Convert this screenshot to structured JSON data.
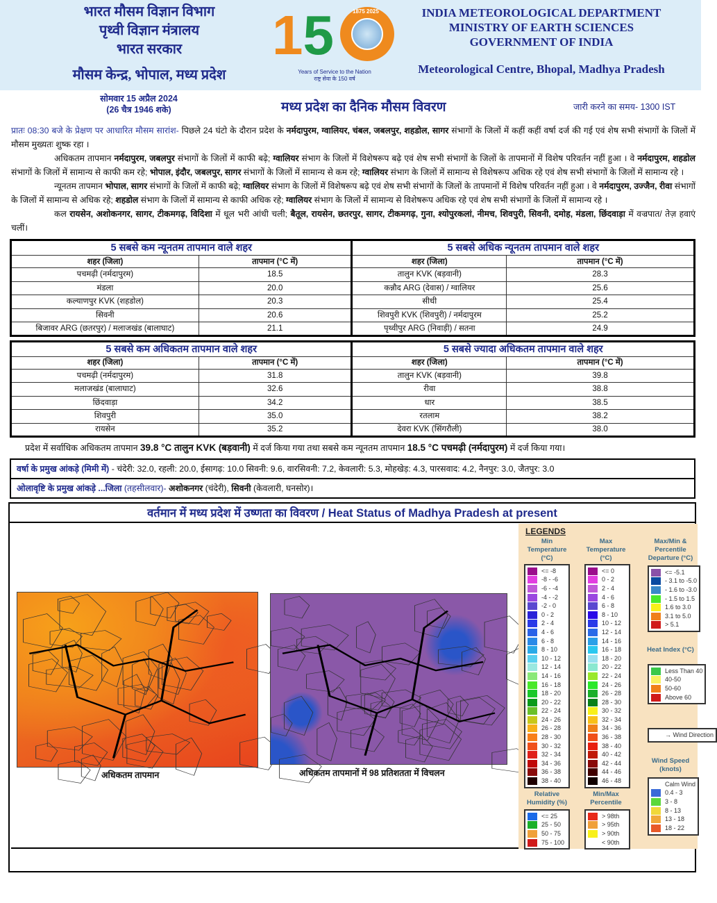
{
  "header": {
    "hindi_lines": [
      "भारत मौसम विज्ञान विभाग",
      "पृथ्वी विज्ञान मंत्रालय",
      "भारत सरकार"
    ],
    "hindi_centre": "मौसम केन्द्र, भोपाल, मध्य प्रदेश",
    "english_lines": [
      "INDIA METEOROLOGICAL DEPARTMENT",
      "MINISTRY OF EARTH SCIENCES",
      "GOVERNMENT OF INDIA"
    ],
    "english_centre": "Meteorological Centre, Bhopal, Madhya Pradesh",
    "logo": {
      "number": "150",
      "years": "1875 2025",
      "tagline": "Years of Service to the Nation",
      "tagline_hindi": "राष्ट्र सेवा के 150 वर्ष"
    }
  },
  "date": {
    "line1": "सोमवार 15 अप्रैल 2024",
    "line2": "(26 चैत्र 1946 शके)"
  },
  "title": "मध्य प्रदेश का दैनिक मौसम विवरण",
  "issue_time": "जारी करने का समय- 1300 IST",
  "paragraphs": [
    [
      {
        "t": "प्रातः 08:30 बजे के प्रेक्षण पर आधारित मौसम सारांश-",
        "lbl": true
      },
      {
        "t": " पिछले 24 घंटो के दौरान प्रदेश के "
      },
      {
        "t": "नर्मदापुरम, ग्वालियर, चंबल, जबलपुर, शहडोल, सागर",
        "b": true
      },
      {
        "t": " संभागों के जिलों में कहीं कहीं वर्षा दर्ज की गई एवं शेष सभी संभागों के जिलों में मौसम मुख्यतः शुष्क रहा ।"
      }
    ],
    [
      {
        "t": "अधिकतम तापमान "
      },
      {
        "t": "नर्मदापुरम, जबलपुर",
        "b": true
      },
      {
        "t": " संभागों के जिलों में काफी बढ़े; "
      },
      {
        "t": "ग्वालियर",
        "b": true
      },
      {
        "t": " संभाग के जिलों में विशेषरूप बढ़े एवं शेष सभी संभागों के जिलों के तापमानों में विशेष परिवर्तन नहीं हुआ । वे "
      },
      {
        "t": "नर्मदापुरम, शहडोल",
        "b": true
      },
      {
        "t": " संभागों के जिलों में सामान्य से काफी कम रहे; "
      },
      {
        "t": "भोपाल, इंदौर, जबलपुर, सागर",
        "b": true
      },
      {
        "t": " संभागों के जिलों में सामान्य से कम रहे; "
      },
      {
        "t": "ग्वालियर",
        "b": true
      },
      {
        "t": " संभाग के जिलों में सामान्य से विशेषरूप अधिक रहे एवं शेष सभी संभागों के जिलों में सामान्य रहे ।"
      }
    ],
    [
      {
        "t": "न्यूनतम तापमान "
      },
      {
        "t": "भोपाल, सागर",
        "b": true
      },
      {
        "t": " संभागों के जिलों में काफी बढ़े; "
      },
      {
        "t": "ग्वालियर",
        "b": true
      },
      {
        "t": " संभाग के जिलों में विशेषरूप बढ़े एवं शेष सभी संभागों के जिलों के तापमानों में विशेष परिवर्तन नहीं हुआ । वे "
      },
      {
        "t": "नर्मदापुरम, उज्जैन, रीवा",
        "b": true
      },
      {
        "t": " संभागों के जिलों में सामान्य से अधिक रहे; "
      },
      {
        "t": "शहडोल",
        "b": true
      },
      {
        "t": " संभाग के जिलों में सामान्य से काफी अधिक रहे; "
      },
      {
        "t": "ग्वालियर",
        "b": true
      },
      {
        "t": " संभाग के जिलों में सामान्य से विशेषरूप अधिक रहे एवं शेष सभी संभागों के जिलों में सामान्य रहे ।"
      }
    ],
    [
      {
        "t": "कल "
      },
      {
        "t": "रायसेन, अशोकनगर,",
        "b": true
      },
      {
        "t": " सागर, टीकमगढ़, विदिशा",
        "b": true
      },
      {
        "t": " में धूल भरी आंधी चली; "
      },
      {
        "t": "बैतूल, रायसेन, छतरपुर, सागर, टीकमगढ़, गुना, श्योपुरकलां, नीमच, शिवपुरी, सिवनी, दमोह, मंडला, छिंदवाड़ा",
        "b": true
      },
      {
        "t": " में वज्रपात/ तेज़ हवाएं चलीं।"
      }
    ]
  ],
  "tables": [
    {
      "left": {
        "title": "5 सबसे कम न्यूनतम तापमान वाले शहर",
        "headers": [
          "शहर (जिला)",
          "तापमान (°C में)"
        ],
        "rows": [
          [
            "पचमढ़ी (नर्मदापुरम)",
            "18.5"
          ],
          [
            "मंडला",
            "20.0"
          ],
          [
            "कल्याणपुर KVK (शहडोल)",
            "20.3"
          ],
          [
            "सिवनी",
            "20.6"
          ],
          [
            "बिजावर ARG (छतरपुर) / मलाजखंड (बालाघाट)",
            "21.1"
          ]
        ]
      },
      "right": {
        "title": "5 सबसे अधिक न्यूनतम तापमान वाले शहर",
        "headers": [
          "शहर (जिला)",
          "तापमान (°C में)"
        ],
        "rows": [
          [
            "तालुन KVK (बड़वानी)",
            "28.3"
          ],
          [
            "कन्नौद ARG (देवास) / ग्वालियर",
            "25.6"
          ],
          [
            "सीधी",
            "25.4"
          ],
          [
            "शिवपुरी KVK (शिवपुरी) / नर्मदापुरम",
            "25.2"
          ],
          [
            "पृथ्वीपुर ARG (निवाड़ी) / सतना",
            "24.9"
          ]
        ]
      }
    },
    {
      "left": {
        "title": "5 सबसे कम अधिकतम तापमान वाले शहर",
        "headers": [
          "शहर (जिला)",
          "तापमान (°C में)"
        ],
        "rows": [
          [
            "पचमढ़ी (नर्मदापुरम)",
            "31.8"
          ],
          [
            "मलाजखंड (बालाघाट)",
            "32.6"
          ],
          [
            "छिंदवाड़ा",
            "34.2"
          ],
          [
            "शिवपुरी",
            "35.0"
          ],
          [
            "रायसेन",
            "35.2"
          ]
        ]
      },
      "right": {
        "title": "5 सबसे ज्यादा अधिकतम तापमान वाले शहर",
        "headers": [
          "शहर (जिला)",
          "तापमान (°C में)"
        ],
        "rows": [
          [
            "तालुन KVK (बड़वानी)",
            "39.8"
          ],
          [
            "रीवा",
            "38.8"
          ],
          [
            "धार",
            "38.5"
          ],
          [
            "रतलाम",
            "38.2"
          ],
          [
            "देवरा KVK (सिंगरौली)",
            "38.0"
          ]
        ]
      }
    }
  ],
  "summary": {
    "pre": "प्रदेश में सर्वाधिक अधिकतम तापमान ",
    "max": "39.8 °C तालुन KVK (बड़वानी)",
    "mid": " में दर्ज किया गया तथा सबसे कम न्यूनतम तापमान ",
    "min": "18.5 °C पचमढ़ी (नर्मदापुरम)",
    "post": " में दर्ज किया गया।"
  },
  "rainfall": {
    "label": "वर्षा के प्रमुख आंकड़े (मिमी में)",
    "text": " - चंदेरी: 32.0, रहली: 20.0, ईसागढ़: 10.0 सिवनी: 9.6, वारसिवनी: 7.2, केवलारी: 5.3, मोहखेड़: 4.3, पारसवाद: 4.2, नैनपुर: 3.0, जैतपुर: 3.0"
  },
  "hail": {
    "label": "ओलावृष्टि के प्रमुख आंकड़े ...जिला",
    "sub": " (तहसीलवार)- ",
    "d1": "अशोकनगर",
    "t1": " (चंदेरी), ",
    "d2": "सिवनी",
    "t2": " (केवलारी, घनसोर)।"
  },
  "heat": {
    "title": "वर्तमान में मध्य प्रदेश में उष्णता का विवरण / Heat Status of Madhya Pradesh at present",
    "map1_caption": "अधिकतम तापमान",
    "map2_caption": "अधिकतम तापमानों में 98 प्रतिशतता में विचलन",
    "legend": {
      "heading": "LEGENDS",
      "groups": [
        {
          "title": "Min Temperature (°C)",
          "items": [
            [
              "<= -8",
              "#9b0d8c"
            ],
            [
              "-8 - -6",
              "#e23fe0"
            ],
            [
              "-6 - -4",
              "#c05ad8"
            ],
            [
              "-4 - -2",
              "#9a48e0"
            ],
            [
              "-2 - 0",
              "#5a48d0"
            ],
            [
              "0 - 2",
              "#2a22d8"
            ],
            [
              "2 - 4",
              "#2a3ae8"
            ],
            [
              "4 - 6",
              "#2a62e8"
            ],
            [
              "6 - 8",
              "#2a8ae8"
            ],
            [
              "8 - 10",
              "#2aaae8"
            ],
            [
              "10 - 12",
              "#5ad0f0"
            ],
            [
              "12 - 14",
              "#9ae8e0"
            ],
            [
              "14 - 16",
              "#8ae878"
            ],
            [
              "16 - 18",
              "#4ae82a"
            ],
            [
              "18 - 20",
              "#1ac82a"
            ],
            [
              "20 - 22",
              "#0a9a1a"
            ],
            [
              "22 - 24",
              "#6ac02a"
            ],
            [
              "24 - 26",
              "#c8c81a"
            ],
            [
              "26 - 28",
              "#f8b01a"
            ],
            [
              "28 - 30",
              "#f8801a"
            ],
            [
              "30 - 32",
              "#f0501a"
            ],
            [
              "32 - 34",
              "#e0201a"
            ],
            [
              "34 - 36",
              "#c00a0a"
            ],
            [
              "36 - 38",
              "#8a0a0a"
            ],
            [
              "38 - 40",
              "#200000"
            ]
          ]
        },
        {
          "title": "Max Temperature (°C)",
          "items": [
            [
              "<= 0",
              "#9b0d8c"
            ],
            [
              "0 - 2",
              "#e23fe0"
            ],
            [
              "2 - 4",
              "#c05ad8"
            ],
            [
              "4 - 6",
              "#9a48e0"
            ],
            [
              "6 - 8",
              "#5a48d0"
            ],
            [
              "8 - 10",
              "#2a0ae8"
            ],
            [
              "10 - 12",
              "#2a3ae8"
            ],
            [
              "12 - 14",
              "#2a6ae8"
            ],
            [
              "14 - 16",
              "#2aa0e8"
            ],
            [
              "16 - 18",
              "#2ac8f0"
            ],
            [
              "18 - 20",
              "#9ae0f0"
            ],
            [
              "20 - 22",
              "#8ae8d0"
            ],
            [
              "22 - 24",
              "#9ae82a"
            ],
            [
              "24 - 26",
              "#2ae82a"
            ],
            [
              "26 - 28",
              "#1ab02a"
            ],
            [
              "28 - 30",
              "#0a801a"
            ],
            [
              "30 - 32",
              "#f8f01a"
            ],
            [
              "32 - 34",
              "#f8c01a"
            ],
            [
              "34 - 36",
              "#f0801a"
            ],
            [
              "36 - 38",
              "#f0501a"
            ],
            [
              "38 - 40",
              "#e82010"
            ],
            [
              "40 - 42",
              "#c01a0a"
            ],
            [
              "42 - 44",
              "#8a0a0a"
            ],
            [
              "44 - 46",
              "#400000"
            ],
            [
              "46 - 48",
              "#100000"
            ]
          ]
        },
        {
          "title": "Max/Min & Percentile Departure (°C)",
          "items": [
            [
              "<= -5.1",
              "#8a50a8"
            ],
            [
              "- 3.1 to -5.0",
              "#0a4aa0"
            ],
            [
              "- 1.6 to -3.0",
              "#3a88c8"
            ],
            [
              "- 1.5 to 1.5",
              "#4ae82a"
            ],
            [
              "1.6 to 3.0",
              "#f8f01a"
            ],
            [
              "3.1 to 5.0",
              "#f0801a"
            ],
            [
              "> 5.1",
              "#d01a1a"
            ]
          ]
        },
        {
          "title": "Heat Index (°C)",
          "items": [
            [
              "Less Than 40",
              "#3ac84a"
            ],
            [
              "40-50",
              "#f8f060"
            ],
            [
              "50-60",
              "#f0801a"
            ],
            [
              "Above 60",
              "#d01a1a"
            ]
          ]
        },
        {
          "title": "",
          "items": [
            [
              "→ Wind Direction",
              ""
            ]
          ]
        },
        {
          "title": "Wind Speed (knots)",
          "items": [
            [
              "Calm Wind",
              ""
            ],
            [
              "0.4 - 3",
              "#3a6ad8"
            ],
            [
              "3 - 8",
              "#5ad83a"
            ],
            [
              "8 - 13",
              "#f0d83a"
            ],
            [
              "13 - 18",
              "#f0a83a"
            ],
            [
              "18 - 22",
              "#e85a2a"
            ]
          ]
        },
        {
          "title": "Relative Humidity (%)",
          "items": [
            [
              "<= 25",
              "#1a6ae8"
            ],
            [
              "25 - 50",
              "#1ab02a"
            ],
            [
              "50 - 75",
              "#f0a03a"
            ],
            [
              "75 - 100",
              "#d01a1a"
            ]
          ]
        },
        {
          "title": "Min/Max Percentile",
          "items": [
            [
              "> 98th",
              "#e82a1a"
            ],
            [
              "> 95th",
              "#f0a03a"
            ],
            [
              "> 90th",
              "#f8f01a"
            ],
            [
              "< 90th",
              ""
            ]
          ]
        }
      ]
    }
  }
}
